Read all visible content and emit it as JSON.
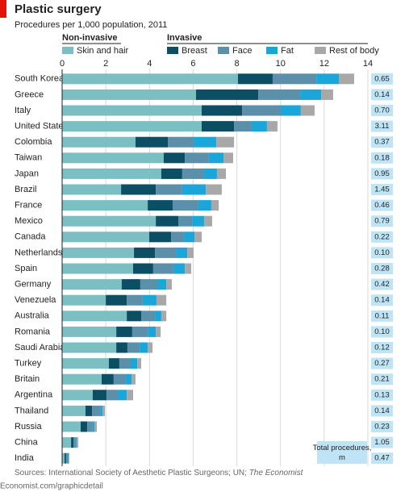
{
  "chart_data": {
    "type": "stacked-bar-horizontal",
    "title": "Plastic surgery",
    "subtitle": "Procedures per 1,000 population, 2011",
    "legend_groups": [
      "Non-invasive",
      "Invasive"
    ],
    "categories": [
      "South Korea",
      "Greece",
      "Italy",
      "United States",
      "Colombia",
      "Taiwan",
      "Japan",
      "Brazil",
      "France",
      "Mexico",
      "Canada",
      "Netherlands",
      "Spain",
      "Germany",
      "Venezuela",
      "Australia",
      "Romania",
      "Saudi Arabia",
      "Turkey",
      "Britain",
      "Argentina",
      "Thailand",
      "Russia",
      "China",
      "India"
    ],
    "series": [
      {
        "name": "Skin and hair",
        "color": "#7bbfc3",
        "values": [
          8.05,
          6.13,
          6.39,
          6.39,
          3.36,
          4.65,
          4.54,
          2.7,
          3.92,
          4.29,
          3.99,
          3.29,
          3.25,
          2.73,
          2.0,
          2.96,
          2.48,
          2.48,
          2.14,
          1.81,
          1.4,
          1.07,
          0.85,
          0.41,
          0.11
        ]
      },
      {
        "name": "Breast",
        "color": "#0c4e64",
        "values": [
          1.59,
          2.85,
          1.85,
          1.48,
          1.48,
          0.97,
          0.96,
          1.59,
          1.14,
          1.03,
          1.0,
          0.96,
          0.92,
          0.85,
          0.96,
          0.66,
          0.73,
          0.51,
          0.48,
          0.55,
          0.63,
          0.3,
          0.3,
          0.11,
          0.07
        ]
      },
      {
        "name": "Face",
        "color": "#5c8fa9",
        "values": [
          2.0,
          1.92,
          1.77,
          0.81,
          1.18,
          1.1,
          1.0,
          1.21,
          1.18,
          0.63,
          0.59,
          0.96,
          0.93,
          0.78,
          0.73,
          0.63,
          0.71,
          0.56,
          0.52,
          0.56,
          0.52,
          0.37,
          0.25,
          0.11,
          0.08
        ]
      },
      {
        "name": "Fat",
        "color": "#1aa6d9",
        "values": [
          1.03,
          0.96,
          0.92,
          0.7,
          1.04,
          0.67,
          0.59,
          1.08,
          0.59,
          0.55,
          0.48,
          0.52,
          0.52,
          0.41,
          0.63,
          0.29,
          0.37,
          0.37,
          0.3,
          0.26,
          0.41,
          0.11,
          0.08,
          0.04,
          0.04
        ]
      },
      {
        "name": "Rest of body",
        "color": "#a8a8a8",
        "values": [
          0.7,
          0.55,
          0.63,
          0.48,
          0.81,
          0.44,
          0.41,
          0.73,
          0.34,
          0.37,
          0.33,
          0.29,
          0.29,
          0.25,
          0.45,
          0.23,
          0.22,
          0.22,
          0.18,
          0.18,
          0.29,
          0.11,
          0.11,
          0.07,
          0.03
        ]
      }
    ],
    "xlim": [
      0,
      14
    ],
    "xticks": [
      0,
      2,
      4,
      6,
      8,
      10,
      12,
      14
    ],
    "grid": true,
    "totals_title": "Total procedures, m",
    "totals": {
      "values": [
        0.65,
        0.14,
        0.7,
        3.11,
        0.37,
        0.18,
        0.95,
        1.45,
        0.46,
        0.79,
        0.22,
        0.1,
        0.28,
        0.42,
        0.14,
        0.11,
        0.1,
        0.12,
        0.27,
        0.21,
        0.13,
        0.14,
        0.23,
        1.05,
        0.47
      ],
      "value_labels": [
        "0.65",
        "0.14",
        "0.70",
        "3.11",
        "0.37",
        "0.18",
        "0.95",
        "1.45",
        "0.46",
        "0.79",
        "0.22",
        "0.10",
        "0.28",
        "0.42",
        "0.14",
        "0.11",
        "0.10",
        "0.12",
        "0.27",
        "0.21",
        "0.13",
        "0.14",
        "0.23",
        "1.05",
        "0.47"
      ],
      "color": "#bfe4f5"
    },
    "source": "Sources: International Society of Aesthetic Plastic Surgeons; UN; ",
    "source_italic": "The Economist",
    "footer": "Economist.com/graphicdetail"
  }
}
